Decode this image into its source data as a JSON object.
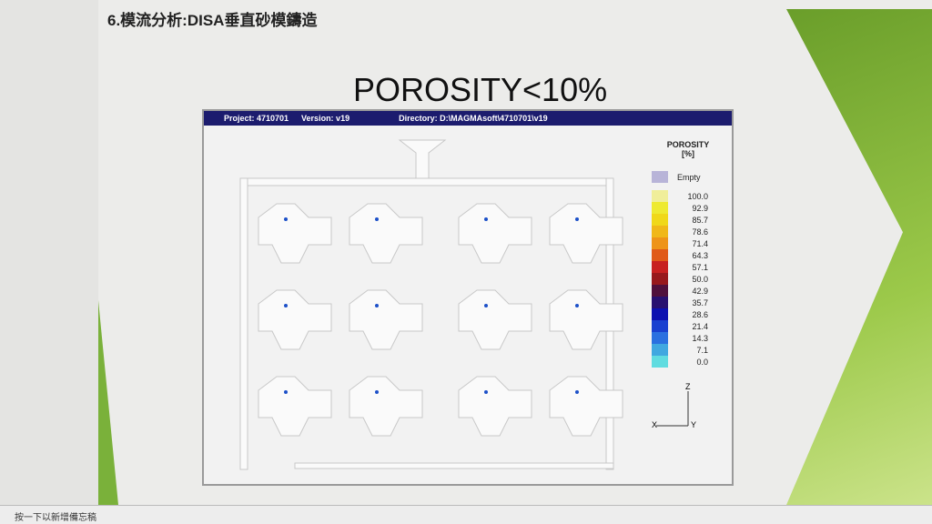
{
  "slide": {
    "title": "6.模流分析:DISA垂直砂模鑄造",
    "heading": "POROSITY<10%"
  },
  "sim_window": {
    "project": "Project: 4710701",
    "version": "Version: v19",
    "directory": "Directory: D:\\MAGMAsoft\\4710701\\v19"
  },
  "legend": {
    "title": "POROSITY",
    "unit": "[%]",
    "empty_label": "Empty",
    "empty_color": "#b8b4d8",
    "levels": [
      {
        "v": "100.0",
        "c": "#f0ee9a"
      },
      {
        "v": "92.9",
        "c": "#eeea30"
      },
      {
        "v": "85.7",
        "c": "#f0d818"
      },
      {
        "v": "78.6",
        "c": "#f0b818"
      },
      {
        "v": "71.4",
        "c": "#ee9418"
      },
      {
        "v": "64.3",
        "c": "#e05a18"
      },
      {
        "v": "57.1",
        "c": "#c82020"
      },
      {
        "v": "50.0",
        "c": "#98181c"
      },
      {
        "v": "42.9",
        "c": "#50103c"
      },
      {
        "v": "35.7",
        "c": "#281070"
      },
      {
        "v": "28.6",
        "c": "#0c10b0"
      },
      {
        "v": "21.4",
        "c": "#1840d0"
      },
      {
        "v": "14.3",
        "c": "#2a70e0"
      },
      {
        "v": "7.1",
        "c": "#40a8e0"
      },
      {
        "v": "0.0",
        "c": "#60dce0"
      }
    ]
  },
  "axes": {
    "z": "Z",
    "x": "X",
    "y": "Y"
  },
  "notes": {
    "placeholder": "按一下以新增備忘稿"
  }
}
